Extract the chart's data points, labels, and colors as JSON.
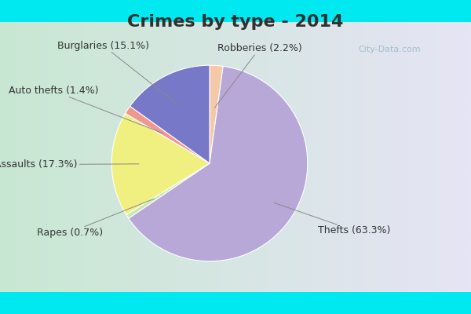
{
  "title": "Crimes by type - 2014",
  "ordered_labels": [
    "Robberies",
    "Thefts",
    "Rapes",
    "Assaults",
    "Auto thefts",
    "Burglaries"
  ],
  "ordered_values": [
    2.2,
    63.3,
    0.7,
    17.3,
    1.4,
    15.1
  ],
  "ordered_colors": [
    "#f5c9a8",
    "#b8a8d8",
    "#c8e8b0",
    "#f0f080",
    "#f09890",
    "#7878c8"
  ],
  "ordered_pcts": [
    "2.2%",
    "63.3%",
    "0.7%",
    "17.3%",
    "1.4%",
    "15.1%"
  ],
  "bg_cyan": "#00e8f0",
  "bg_main_left": "#c8e8d0",
  "bg_main_right": "#e8e8f8",
  "title_fontsize": 16,
  "label_fontsize": 9,
  "watermark_text": "City-Data.com",
  "title_color": "#303030"
}
